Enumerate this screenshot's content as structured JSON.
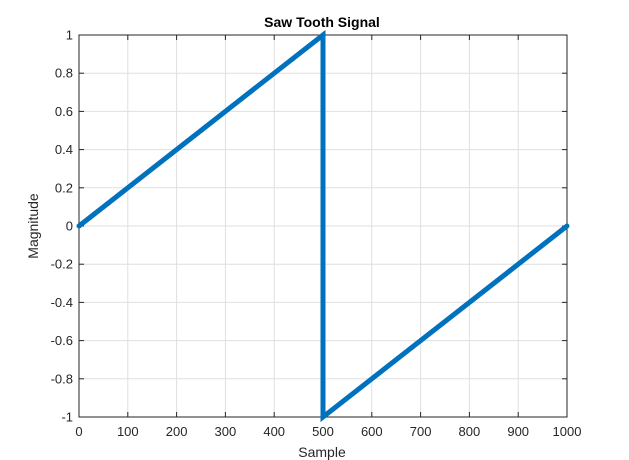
{
  "chart_data": {
    "type": "line",
    "title": "Saw Tooth Signal",
    "xlabel": "Sample",
    "ylabel": "Magnitude",
    "xlim": [
      0,
      1000
    ],
    "ylim": [
      -1,
      1
    ],
    "xticks": [
      0,
      100,
      200,
      300,
      400,
      500,
      600,
      700,
      800,
      900,
      1000
    ],
    "yticks": [
      -1,
      -0.8,
      -0.6,
      -0.4,
      -0.2,
      0,
      0.2,
      0.4,
      0.6,
      0.8,
      1
    ],
    "xtick_labels": [
      "0",
      "100",
      "200",
      "300",
      "400",
      "500",
      "600",
      "700",
      "800",
      "900",
      "1000"
    ],
    "ytick_labels": [
      "-1",
      "-0.8",
      "-0.6",
      "-0.4",
      "-0.2",
      "0",
      "0.2",
      "0.4",
      "0.6",
      "0.8",
      "1"
    ],
    "grid": true,
    "series": [
      {
        "color": "#0072BD",
        "x": [
          0,
          500,
          500,
          1000
        ],
        "y": [
          0,
          1,
          -1,
          0
        ]
      }
    ]
  }
}
